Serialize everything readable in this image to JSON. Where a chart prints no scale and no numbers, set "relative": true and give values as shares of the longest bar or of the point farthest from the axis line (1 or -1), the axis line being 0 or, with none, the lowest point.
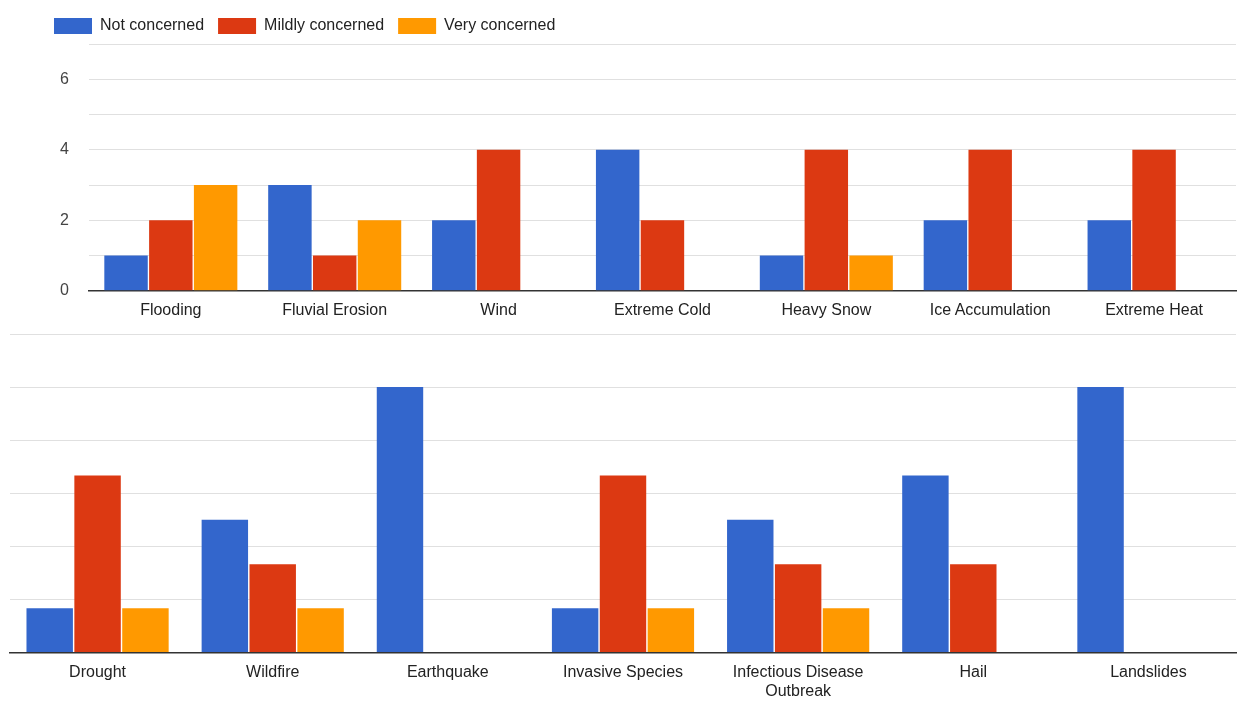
{
  "chart_data": [
    {
      "type": "bar",
      "categories": [
        "Flooding",
        "Fluvial Erosion",
        "Wind",
        "Extreme Cold",
        "Heavy Snow",
        "Ice Accumulation",
        "Extreme Heat"
      ],
      "series": [
        {
          "name": "Not concerned",
          "color": "#3366cc",
          "values": [
            1,
            3,
            2,
            4,
            1,
            2,
            2
          ]
        },
        {
          "name": "Mildly concerned",
          "color": "#dc3912",
          "values": [
            2,
            1,
            4,
            2,
            4,
            4,
            4
          ]
        },
        {
          "name": "Very concerned",
          "color": "#ff9900",
          "values": [
            3,
            2,
            0,
            0,
            1,
            0,
            0
          ]
        }
      ],
      "ylim": [
        0,
        7
      ],
      "yticks": [
        0,
        {
          "value": 1,
          "label": null
        },
        2,
        {
          "value": 3,
          "label": null
        },
        4,
        {
          "value": 5,
          "label": null
        },
        6,
        {
          "value": 7,
          "label": null
        }
      ],
      "grid": "y",
      "legend": "top left"
    },
    {
      "type": "bar",
      "categories": [
        "Drought",
        "Wildfire",
        "Earthquake",
        "Invasive Species",
        "Infectious Disease Outbreak",
        "Hail",
        "Landslides"
      ],
      "series": [
        {
          "color": "#3366cc",
          "values": [
            0.167,
            0.5,
            1,
            0.167,
            0.5,
            0.667,
            1
          ]
        },
        {
          "color": "#dc3912",
          "values": [
            0.667,
            0.333,
            0,
            0.667,
            0.333,
            0.333,
            0
          ]
        },
        {
          "color": "#ff9900",
          "values": [
            0.167,
            0.167,
            0,
            0.167,
            0.167,
            0,
            0
          ]
        }
      ],
      "relative": true,
      "grid": "y",
      "tick_labels": "x"
    }
  ]
}
